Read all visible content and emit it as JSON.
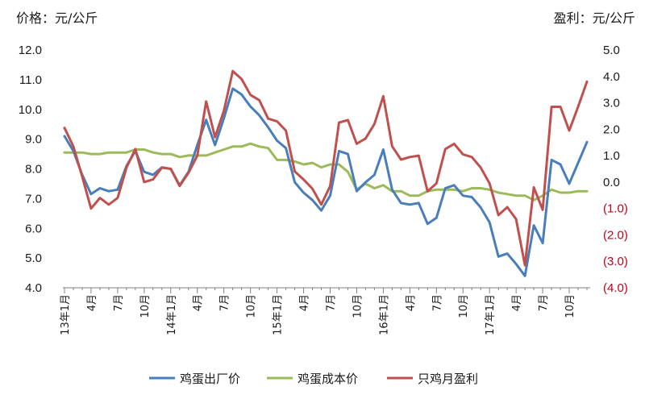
{
  "chart_data": {
    "type": "line",
    "left_axis_unit": "价格：元/公斤",
    "right_axis_unit": "盈利：元/公斤",
    "x_labels": [
      "13年1月",
      "4月",
      "7月",
      "10月",
      "14年1月",
      "4月",
      "7月",
      "10月",
      "15年1月",
      "4月",
      "7月",
      "10月",
      "16年1月",
      "4月",
      "7月",
      "10月",
      "17年1月",
      "4月",
      "7月",
      "10月"
    ],
    "x_label_every": 3,
    "y_left": {
      "min": 4.0,
      "max": 12.0,
      "ticks": [
        "4.0",
        "5.0",
        "6.0",
        "7.0",
        "8.0",
        "9.0",
        "10.0",
        "11.0",
        "12.0"
      ]
    },
    "y_right": {
      "min": -4,
      "max": 5,
      "ticks": [
        "(4.0)",
        "(3.0)",
        "(2.0)",
        "(1.0)",
        "0.0",
        "1.0",
        "2.0",
        "3.0",
        "4.0",
        "5.0"
      ]
    },
    "series": [
      {
        "name": "鸡蛋出厂价",
        "axis": "left",
        "color": "#4a7ebb",
        "values": [
          9.1,
          8.6,
          7.8,
          7.15,
          7.35,
          7.25,
          7.3,
          8.1,
          8.6,
          7.9,
          7.8,
          8.05,
          8.0,
          7.45,
          7.9,
          8.8,
          9.65,
          8.8,
          9.7,
          10.7,
          10.5,
          10.1,
          9.8,
          9.4,
          8.95,
          8.7,
          7.55,
          7.2,
          6.95,
          6.6,
          7.1,
          8.6,
          8.5,
          7.25,
          7.55,
          7.8,
          8.65,
          7.3,
          6.85,
          6.8,
          6.85,
          6.15,
          6.35,
          7.35,
          7.45,
          7.1,
          7.05,
          6.7,
          6.2,
          5.05,
          5.15,
          4.8,
          4.4,
          6.1,
          5.5,
          8.3,
          8.15,
          7.5,
          8.2,
          8.9
        ]
      },
      {
        "name": "鸡蛋成本价",
        "axis": "left",
        "color": "#9bbb59",
        "values": [
          8.55,
          8.55,
          8.55,
          8.5,
          8.5,
          8.55,
          8.55,
          8.55,
          8.65,
          8.65,
          8.55,
          8.5,
          8.5,
          8.4,
          8.45,
          8.45,
          8.45,
          8.55,
          8.65,
          8.75,
          8.75,
          8.85,
          8.75,
          8.7,
          8.3,
          8.3,
          8.25,
          8.15,
          8.2,
          8.05,
          8.15,
          8.15,
          7.9,
          7.3,
          7.5,
          7.35,
          7.45,
          7.25,
          7.25,
          7.1,
          7.1,
          7.25,
          7.3,
          7.3,
          7.3,
          7.25,
          7.35,
          7.35,
          7.3,
          7.2,
          7.15,
          7.1,
          7.1,
          6.95,
          7.1,
          7.3,
          7.2,
          7.2,
          7.25,
          7.25
        ]
      },
      {
        "name": "只鸡月盈利",
        "axis": "right",
        "color": "#c0504d",
        "values": [
          2.05,
          1.35,
          0.2,
          -1.0,
          -0.6,
          -0.85,
          -0.6,
          0.55,
          1.25,
          0.0,
          0.1,
          0.55,
          0.5,
          -0.15,
          0.35,
          1.0,
          3.05,
          1.7,
          2.7,
          4.2,
          3.9,
          3.3,
          3.1,
          2.4,
          2.3,
          1.95,
          0.4,
          0.1,
          -0.25,
          -0.85,
          -0.15,
          2.25,
          2.35,
          1.45,
          1.65,
          2.2,
          3.25,
          1.35,
          0.85,
          0.95,
          1.0,
          -0.35,
          -0.05,
          1.25,
          1.45,
          1.05,
          0.95,
          0.55,
          -0.05,
          -1.25,
          -0.95,
          -1.4,
          -3.15,
          -0.2,
          -1.05,
          2.85,
          2.85,
          1.95,
          2.85,
          3.8
        ]
      }
    ],
    "legend_position": "bottom",
    "grid": false
  }
}
